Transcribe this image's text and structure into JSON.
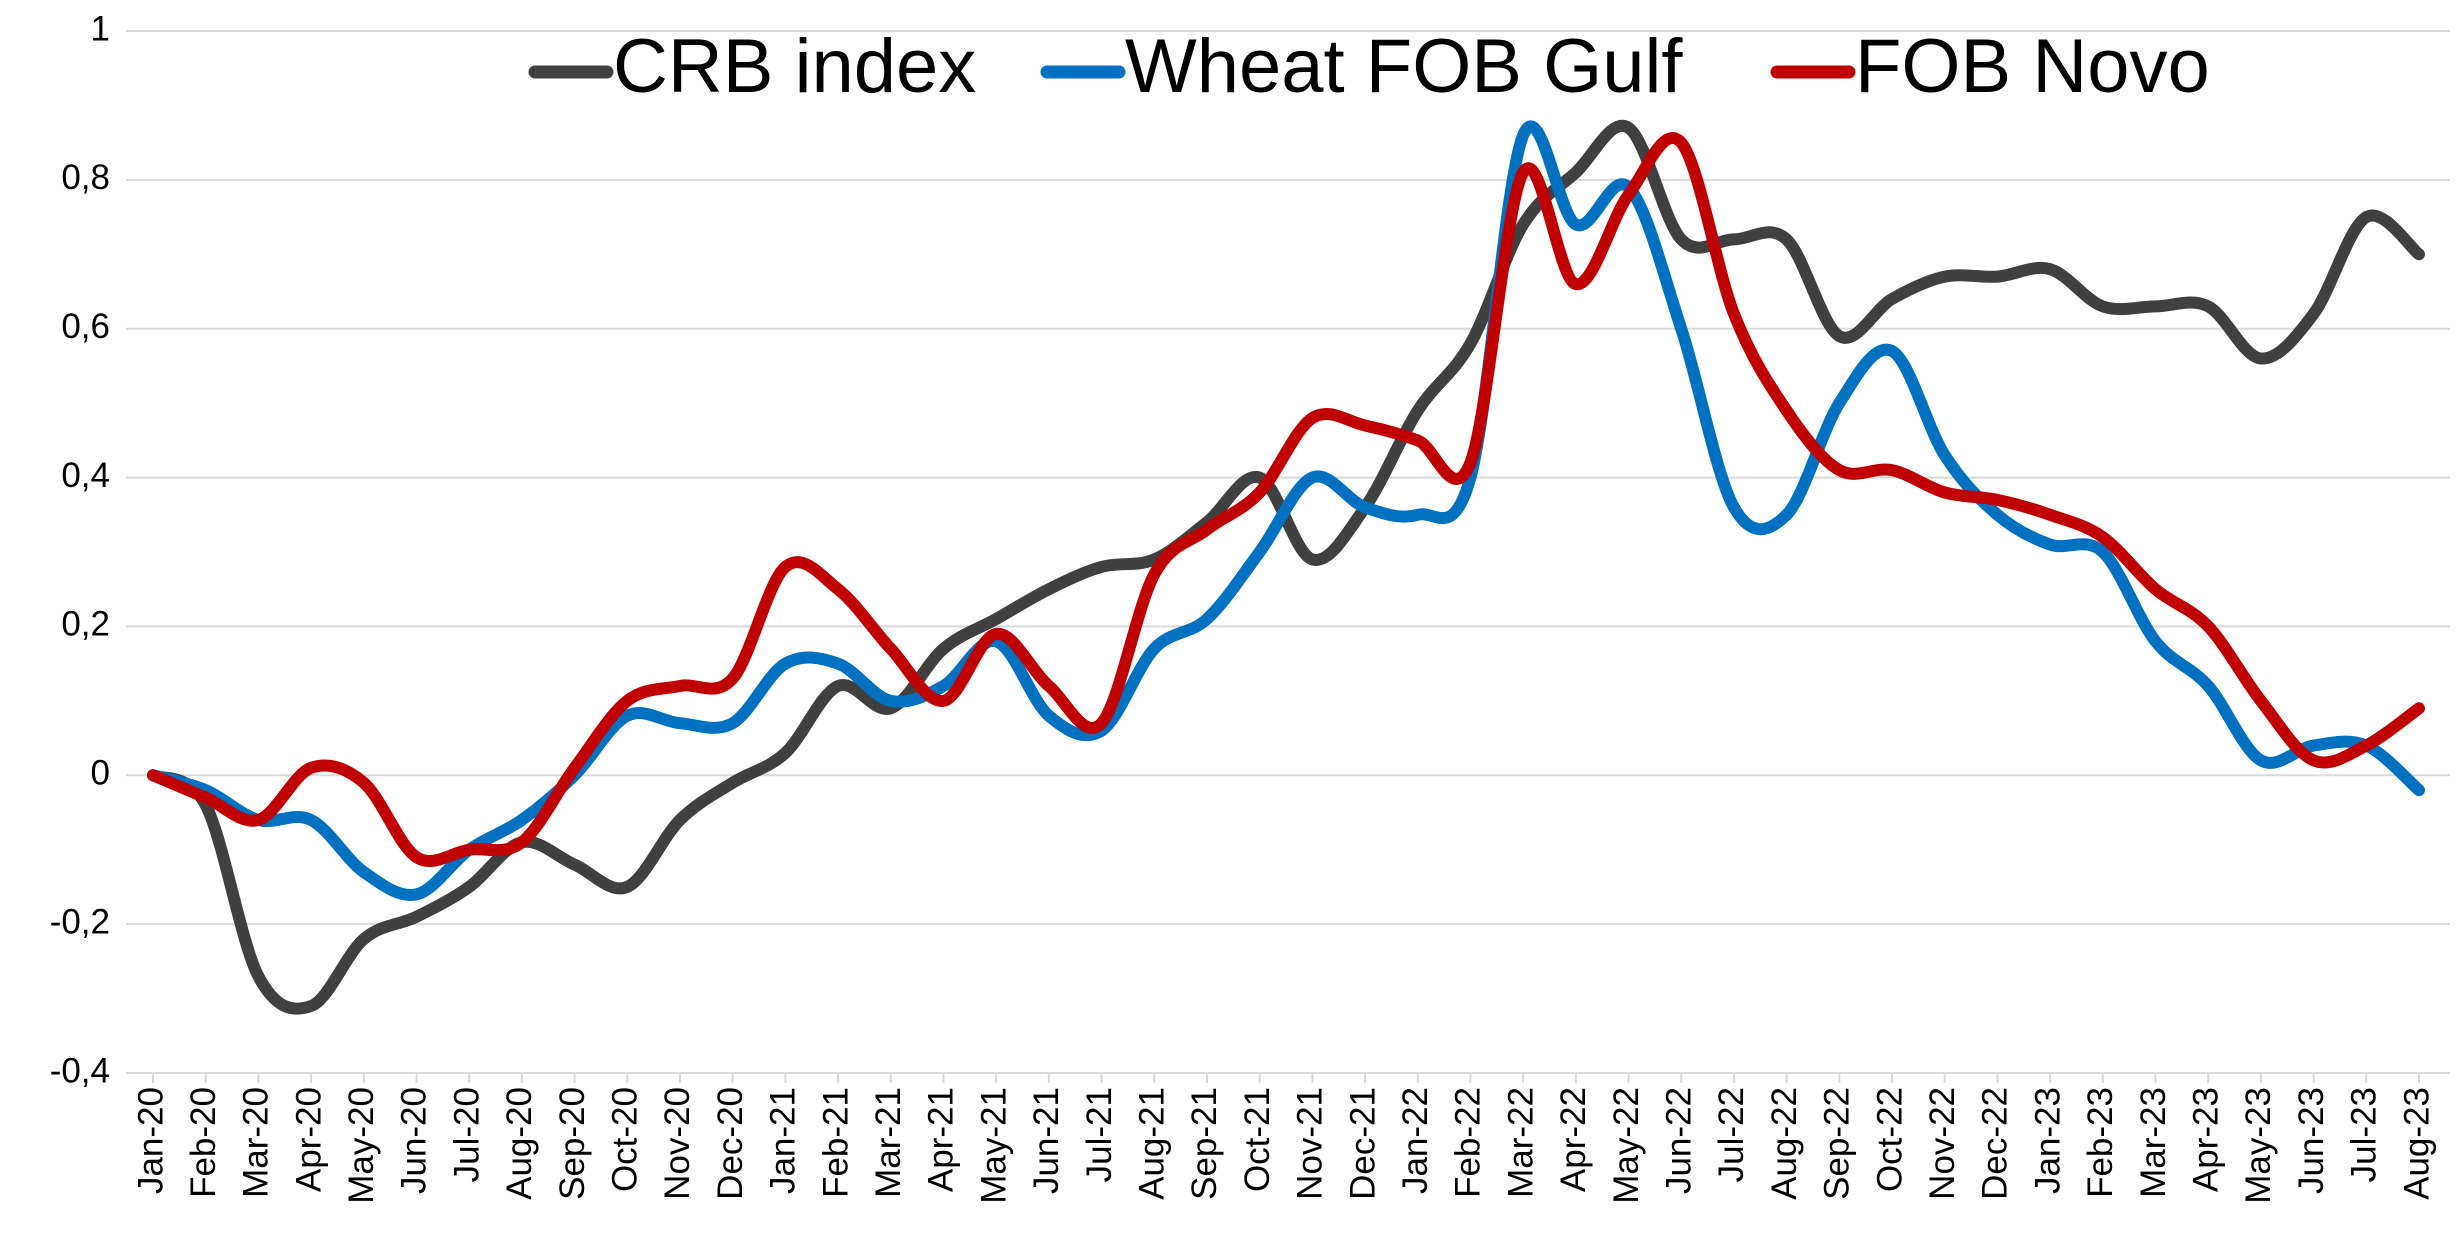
{
  "chart_data": {
    "type": "line",
    "categories": [
      "Jan-20",
      "Feb-20",
      "Mar-20",
      "Apr-20",
      "May-20",
      "Jun-20",
      "Jul-20",
      "Aug-20",
      "Sep-20",
      "Oct-20",
      "Nov-20",
      "Dec-20",
      "Jan-21",
      "Feb-21",
      "Mar-21",
      "Apr-21",
      "May-21",
      "Jun-21",
      "Jul-21",
      "Aug-21",
      "Sep-21",
      "Oct-21",
      "Nov-21",
      "Dec-21",
      "Jan-22",
      "Feb-22",
      "Mar-22",
      "Apr-22",
      "May-22",
      "Jun-22",
      "Jul-22",
      "Aug-22",
      "Sep-22",
      "Oct-22",
      "Nov-22",
      "Dec-22",
      "Jan-23",
      "Feb-23",
      "Mar-23",
      "Apr-23",
      "May-23",
      "Jun-23",
      "Jul-23",
      "Aug-23"
    ],
    "series": [
      {
        "name": "CRB index",
        "color": "#404040",
        "values": [
          0,
          -0.04,
          -0.27,
          -0.31,
          -0.22,
          -0.19,
          -0.15,
          -0.09,
          -0.12,
          -0.15,
          -0.06,
          -0.01,
          0.03,
          0.12,
          0.09,
          0.17,
          0.21,
          0.25,
          0.28,
          0.29,
          0.34,
          0.4,
          0.29,
          0.36,
          0.49,
          0.58,
          0.74,
          0.81,
          0.87,
          0.72,
          0.72,
          0.72,
          0.59,
          0.64,
          0.67,
          0.67,
          0.68,
          0.63,
          0.63,
          0.63,
          0.56,
          0.62,
          0.75,
          0.7
        ]
      },
      {
        "name": "Wheat FOB Gulf",
        "color": "#0070c0",
        "values": [
          0,
          -0.02,
          -0.06,
          -0.06,
          -0.13,
          -0.16,
          -0.1,
          -0.06,
          0.0,
          0.08,
          0.07,
          0.07,
          0.15,
          0.15,
          0.1,
          0.12,
          0.18,
          0.08,
          0.06,
          0.17,
          0.21,
          0.3,
          0.4,
          0.36,
          0.35,
          0.4,
          0.86,
          0.74,
          0.79,
          0.6,
          0.36,
          0.35,
          0.5,
          0.57,
          0.43,
          0.35,
          0.31,
          0.3,
          0.18,
          0.12,
          0.02,
          0.04,
          0.04,
          -0.02
        ]
      },
      {
        "name": "FOB Novo",
        "color": "#c00000",
        "values": [
          0,
          -0.03,
          -0.06,
          0.01,
          -0.01,
          -0.11,
          -0.1,
          -0.09,
          0.01,
          0.1,
          0.12,
          0.13,
          0.28,
          0.25,
          0.17,
          0.1,
          0.19,
          0.12,
          0.07,
          0.27,
          0.33,
          0.38,
          0.48,
          0.47,
          0.45,
          0.42,
          0.81,
          0.66,
          0.78,
          0.85,
          0.62,
          0.49,
          0.41,
          0.41,
          0.38,
          0.37,
          0.35,
          0.32,
          0.25,
          0.2,
          0.1,
          0.02,
          0.04,
          0.09
        ]
      }
    ],
    "ylim": [
      -0.4,
      1
    ],
    "yticks": [
      {
        "value": -0.4,
        "label": "-0,4"
      },
      {
        "value": -0.2,
        "label": "-0,2"
      },
      0,
      {
        "value": 0.2,
        "label": "0,2"
      },
      {
        "value": 0.4,
        "label": "0,4"
      },
      {
        "value": 0.6,
        "label": "0,6"
      },
      {
        "value": 0.8,
        "label": "0,8"
      },
      1
    ],
    "grid": true,
    "legend": "top"
  }
}
